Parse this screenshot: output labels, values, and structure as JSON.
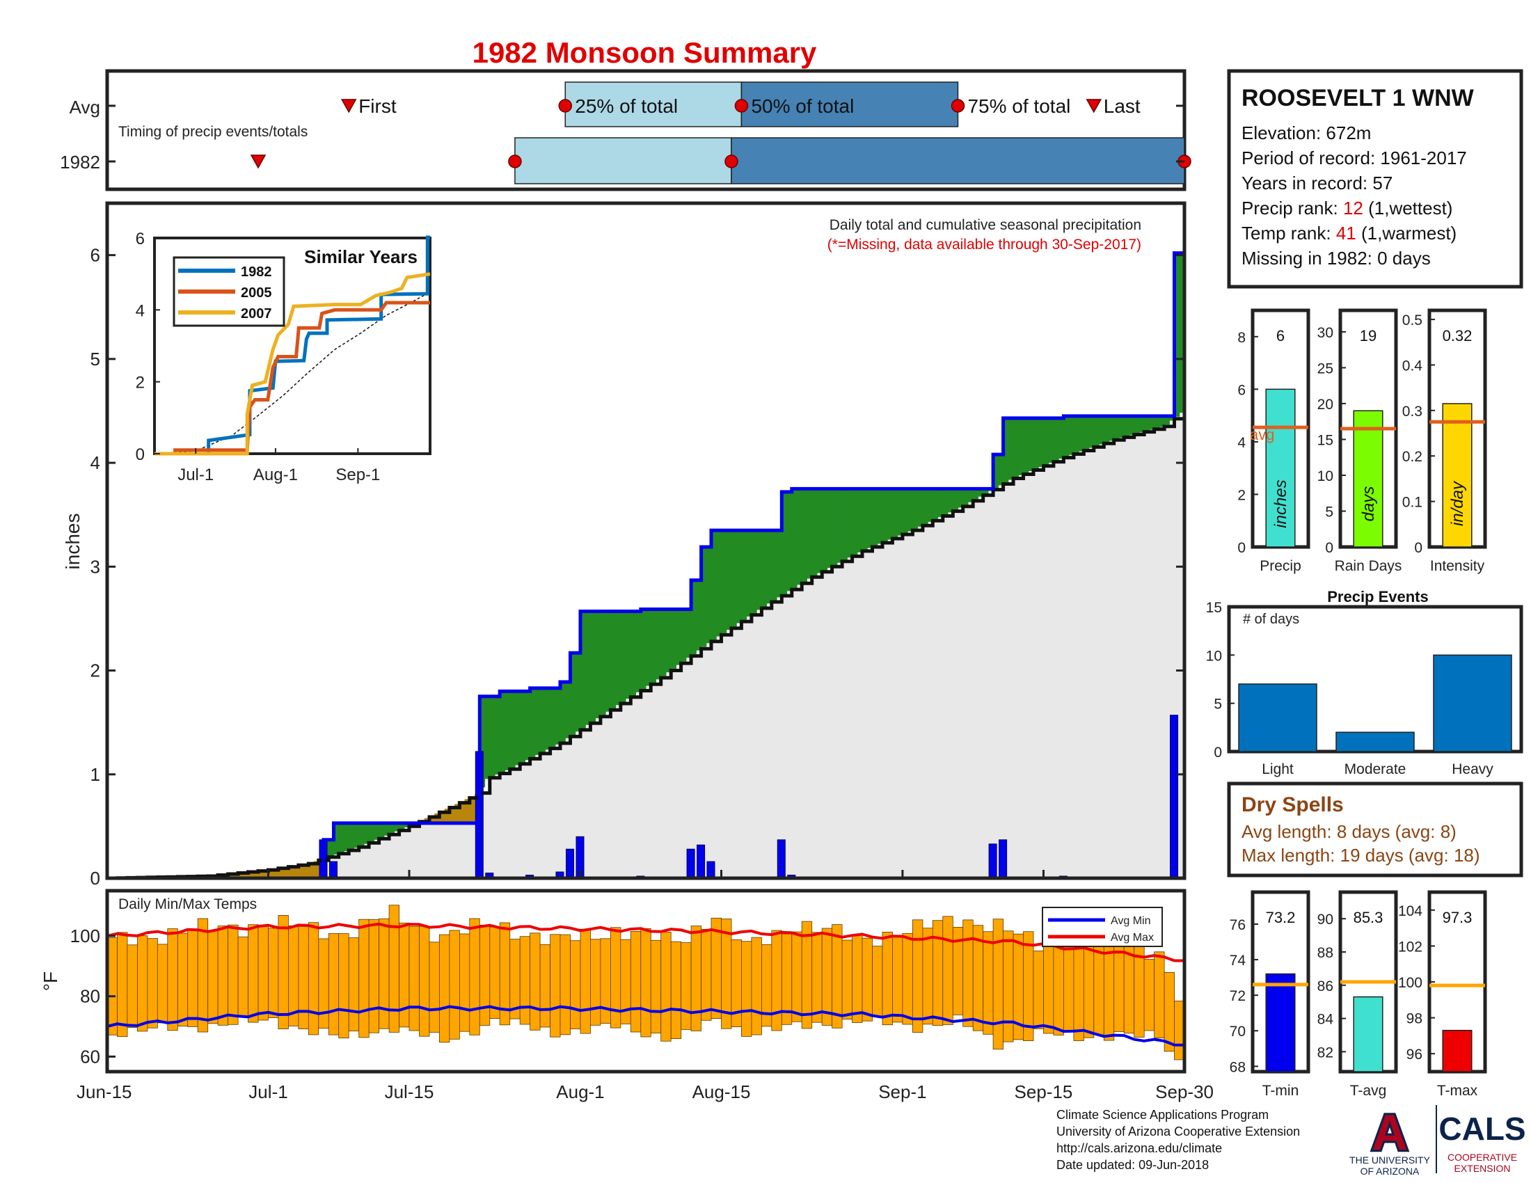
{
  "title": "1982 Monsoon Summary",
  "colors": {
    "title": "#e00000",
    "blue_line": "#0000ee",
    "green_fill": "#228b22",
    "brown_fill": "#b8860b",
    "gray_fill": "#e8e8e8",
    "bar_blue": "#0000ee",
    "temp_bar": "#ffa500",
    "avg_max": "#ee0000",
    "avg_min": "#0000ee",
    "light_blue": "#add8e6",
    "steel_blue": "#4682b4",
    "avg_line": "#e0601e",
    "dry_spell": "#8b4513",
    "red_text": "#e00000"
  },
  "timing": {
    "row_avg": "Avg",
    "row_year": "1982",
    "caption": "Timing of precip events/totals",
    "labels": {
      "first": "First",
      "p25": "25% of total",
      "p50": "50% of total",
      "p75": "75% of total",
      "last": "Last"
    },
    "avg": {
      "first": 24,
      "p25": 45.5,
      "p50": 63,
      "p75": 84.5,
      "last": 98
    },
    "year": {
      "first": 15,
      "p25": 40.5,
      "p50": 62,
      "p75": 107
    }
  },
  "station": {
    "name": "ROOSEVELT 1 WNW",
    "elevation": "Elevation: 672m",
    "period": "Period of record: 1961-2017",
    "years": "Years in record: 57",
    "precip_rank_label": "Precip rank: ",
    "precip_rank": "12",
    "precip_rank_note": " (1,wettest)",
    "temp_rank_label": "Temp rank: ",
    "temp_rank": "41",
    "temp_rank_note": " (1,warmest)",
    "missing": "Missing in 1982: 0 days"
  },
  "main_chart": {
    "ylabel": "inches",
    "ylim": [
      0,
      6.5
    ],
    "yticks": [
      "0",
      "1",
      "2",
      "3",
      "4",
      "5",
      "6"
    ],
    "xlim": [
      0,
      107
    ],
    "xticks": [
      {
        "label": "Jun-15",
        "day": 0
      },
      {
        "label": "Jul-1",
        "day": 16
      },
      {
        "label": "Jul-15",
        "day": 30
      },
      {
        "label": "Aug-1",
        "day": 47
      },
      {
        "label": "Aug-15",
        "day": 61
      },
      {
        "label": "Sep-1",
        "day": 79
      },
      {
        "label": "Sep-15",
        "day": 93
      },
      {
        "label": "Sep-30",
        "day": 108
      }
    ],
    "note": "Daily total and cumulative seasonal precipitation",
    "missing_note": "(*=Missing, data available through 30-Sep-2017)",
    "cumulative_1982": [
      [
        0,
        0
      ],
      [
        16,
        0
      ],
      [
        21.5,
        0
      ],
      [
        21.5,
        0.37
      ],
      [
        22.5,
        0.37
      ],
      [
        22.5,
        0.53
      ],
      [
        37,
        0.53
      ],
      [
        37,
        1.75
      ],
      [
        39,
        1.75
      ],
      [
        39,
        1.8
      ],
      [
        42,
        1.8
      ],
      [
        42,
        1.83
      ],
      [
        45,
        1.83
      ],
      [
        45,
        1.89
      ],
      [
        46,
        1.89
      ],
      [
        46,
        2.17
      ],
      [
        47,
        2.17
      ],
      [
        47,
        2.57
      ],
      [
        53,
        2.57
      ],
      [
        53,
        2.59
      ],
      [
        58,
        2.59
      ],
      [
        58,
        2.87
      ],
      [
        59,
        2.87
      ],
      [
        59,
        3.19
      ],
      [
        60,
        3.19
      ],
      [
        60,
        3.35
      ],
      [
        67,
        3.35
      ],
      [
        67,
        3.72
      ],
      [
        68,
        3.72
      ],
      [
        68,
        3.75
      ],
      [
        88,
        3.75
      ],
      [
        88,
        4.08
      ],
      [
        89,
        4.08
      ],
      [
        89,
        4.43
      ],
      [
        95,
        4.43
      ],
      [
        95,
        4.45
      ],
      [
        106,
        4.45
      ],
      [
        106,
        6.02
      ],
      [
        107,
        6.02
      ]
    ],
    "average_cumulative": [
      [
        0,
        0
      ],
      [
        10,
        0.02
      ],
      [
        16,
        0.08
      ],
      [
        20,
        0.14
      ],
      [
        25,
        0.3
      ],
      [
        30,
        0.5
      ],
      [
        34,
        0.68
      ],
      [
        37,
        0.82
      ],
      [
        37.6,
        0.95
      ],
      [
        40,
        1.05
      ],
      [
        45,
        1.3
      ],
      [
        50,
        1.62
      ],
      [
        55,
        1.93
      ],
      [
        60,
        2.28
      ],
      [
        65,
        2.6
      ],
      [
        70,
        2.9
      ],
      [
        75,
        3.15
      ],
      [
        80,
        3.35
      ],
      [
        85,
        3.58
      ],
      [
        90,
        3.85
      ],
      [
        95,
        4.05
      ],
      [
        100,
        4.22
      ],
      [
        105,
        4.35
      ],
      [
        107,
        4.5
      ]
    ],
    "daily_bars": [
      [
        21.5,
        0.37
      ],
      [
        22.5,
        0.16
      ],
      [
        37,
        1.22
      ],
      [
        38,
        0.05
      ],
      [
        42,
        0.03
      ],
      [
        45,
        0.06
      ],
      [
        46,
        0.28
      ],
      [
        47,
        0.4
      ],
      [
        53,
        0.02
      ],
      [
        58,
        0.28
      ],
      [
        59,
        0.32
      ],
      [
        60,
        0.16
      ],
      [
        67,
        0.37
      ],
      [
        68,
        0.03
      ],
      [
        88,
        0.33
      ],
      [
        89,
        0.37
      ],
      [
        95,
        0.02
      ],
      [
        106,
        1.57
      ]
    ]
  },
  "inset": {
    "title": "Similar Years",
    "ylim": [
      0,
      6
    ],
    "yticks": [
      "0",
      "2",
      "4",
      "6"
    ],
    "xticks": [
      {
        "label": "Jul-1",
        "day": 16
      },
      {
        "label": "Aug-1",
        "day": 47
      },
      {
        "label": "Sep-1",
        "day": 79
      }
    ],
    "series": [
      {
        "name": "1982",
        "color": "#0072bd",
        "points": [
          [
            0,
            0
          ],
          [
            21,
            0
          ],
          [
            21,
            0.37
          ],
          [
            37,
            0.53
          ],
          [
            37,
            1.75
          ],
          [
            46,
            1.83
          ],
          [
            47,
            2.57
          ],
          [
            58,
            2.59
          ],
          [
            59,
            3.19
          ],
          [
            60,
            3.35
          ],
          [
            67,
            3.35
          ],
          [
            67,
            3.72
          ],
          [
            88,
            3.75
          ],
          [
            88,
            4.43
          ],
          [
            106,
            4.45
          ],
          [
            106,
            6.02
          ],
          [
            107,
            6.02
          ]
        ]
      },
      {
        "name": "2005",
        "color": "#d95319",
        "points": [
          [
            0,
            0
          ],
          [
            8,
            0
          ],
          [
            8,
            0.1
          ],
          [
            36,
            0.1
          ],
          [
            37,
            1.3
          ],
          [
            39,
            1.5
          ],
          [
            44,
            1.5
          ],
          [
            46,
            2.4
          ],
          [
            48,
            2.7
          ],
          [
            55,
            2.7
          ],
          [
            56,
            3.5
          ],
          [
            64,
            3.5
          ],
          [
            65,
            3.9
          ],
          [
            70,
            4.0
          ],
          [
            88,
            4.0
          ],
          [
            90,
            4.2
          ],
          [
            107,
            4.2
          ]
        ]
      },
      {
        "name": "2007",
        "color": "#edb120",
        "points": [
          [
            0,
            0
          ],
          [
            36,
            0
          ],
          [
            36,
            1.1
          ],
          [
            38,
            1.9
          ],
          [
            43,
            2.0
          ],
          [
            46,
            2.9
          ],
          [
            48,
            3.3
          ],
          [
            52,
            3.6
          ],
          [
            54,
            4.1
          ],
          [
            70,
            4.15
          ],
          [
            80,
            4.15
          ],
          [
            86,
            4.4
          ],
          [
            92,
            4.5
          ],
          [
            96,
            4.6
          ],
          [
            98,
            4.9
          ],
          [
            107,
            5.0
          ]
        ]
      }
    ],
    "avg_points": [
      [
        0,
        0
      ],
      [
        16,
        0.08
      ],
      [
        30,
        0.5
      ],
      [
        40,
        1.05
      ],
      [
        50,
        1.62
      ],
      [
        60,
        2.28
      ],
      [
        70,
        2.9
      ],
      [
        80,
        3.35
      ],
      [
        90,
        3.85
      ],
      [
        100,
        4.22
      ],
      [
        107,
        4.5
      ]
    ]
  },
  "temps": {
    "label": "Daily Min/Max Temps",
    "ylabel": "°F",
    "ylim": [
      55,
      115
    ],
    "yticks": [
      "60",
      "80",
      "100"
    ],
    "legend_min": "Avg Min",
    "legend_max": "Avg Max",
    "max_knots": [
      [
        0,
        98
      ],
      [
        8,
        102
      ],
      [
        16,
        104
      ],
      [
        23,
        101
      ],
      [
        28,
        107
      ],
      [
        33,
        100
      ],
      [
        38,
        104
      ],
      [
        44,
        98
      ],
      [
        50,
        102
      ],
      [
        56,
        98
      ],
      [
        60,
        107
      ],
      [
        63,
        96
      ],
      [
        68,
        104
      ],
      [
        74,
        99
      ],
      [
        80,
        102
      ],
      [
        84,
        106
      ],
      [
        88,
        103
      ],
      [
        92,
        97
      ],
      [
        96,
        101
      ],
      [
        100,
        98
      ],
      [
        104,
        95
      ],
      [
        106,
        80
      ],
      [
        107,
        85
      ]
    ],
    "min_knots": [
      [
        0,
        68
      ],
      [
        8,
        70
      ],
      [
        16,
        72
      ],
      [
        23,
        66
      ],
      [
        28,
        70
      ],
      [
        33,
        65
      ],
      [
        38,
        72
      ],
      [
        44,
        68
      ],
      [
        50,
        70
      ],
      [
        56,
        66
      ],
      [
        60,
        72
      ],
      [
        63,
        68
      ],
      [
        68,
        70
      ],
      [
        74,
        72
      ],
      [
        80,
        70
      ],
      [
        84,
        72
      ],
      [
        88,
        64
      ],
      [
        92,
        68
      ],
      [
        96,
        66
      ],
      [
        100,
        68
      ],
      [
        104,
        66
      ],
      [
        106,
        58
      ],
      [
        107,
        60
      ]
    ],
    "avg_max_knots": [
      [
        0,
        100
      ],
      [
        15,
        103
      ],
      [
        30,
        103.5
      ],
      [
        45,
        102.5
      ],
      [
        60,
        101.5
      ],
      [
        75,
        100
      ],
      [
        90,
        98
      ],
      [
        107,
        92
      ]
    ],
    "avg_min_knots": [
      [
        0,
        70
      ],
      [
        15,
        74
      ],
      [
        30,
        76
      ],
      [
        45,
        76
      ],
      [
        60,
        75
      ],
      [
        75,
        74
      ],
      [
        90,
        71
      ],
      [
        107,
        64
      ]
    ]
  },
  "stat_charts": [
    {
      "label": "Precip",
      "value": 6,
      "value_label": "6",
      "avg": 4.55,
      "avg_label": "avg",
      "unit": "inches",
      "color": "#40e0d0",
      "ymax": 9,
      "ticks": [
        "0",
        "2",
        "4",
        "6",
        "8"
      ],
      "tick_values": [
        0,
        2,
        4,
        6,
        8
      ]
    },
    {
      "label": "Rain Days",
      "value": 19,
      "value_label": "19",
      "avg": 16.5,
      "unit": "days",
      "color": "#7cfc00",
      "ymax": 33,
      "ticks": [
        "0",
        "5",
        "10",
        "15",
        "20",
        "25",
        "30"
      ],
      "tick_values": [
        0,
        5,
        10,
        15,
        20,
        25,
        30
      ]
    },
    {
      "label": "Intensity",
      "value": 0.315,
      "value_label": "0.32",
      "avg": 0.275,
      "unit": "in/day",
      "color": "#ffd700",
      "ymax": 0.52,
      "ticks": [
        "0",
        "0.1",
        "0.2",
        "0.3",
        "0.4",
        "0.5"
      ],
      "tick_values": [
        0,
        0.1,
        0.2,
        0.3,
        0.4,
        0.5
      ]
    }
  ],
  "precip_events": {
    "title": "Precip Events",
    "ylabel": "# of days",
    "categories": [
      "Light",
      "Moderate",
      "Heavy"
    ],
    "values": [
      7,
      2,
      10
    ],
    "ylim": [
      0,
      15
    ],
    "yticks": [
      "0",
      "5",
      "10",
      "15"
    ],
    "color": "#0072bd"
  },
  "dry_spells": {
    "title": "Dry Spells",
    "avg_length": "Avg length: 8 days (avg: 8)",
    "max_length": "Max length: 19 days (avg: 18)"
  },
  "temp_charts": [
    {
      "label": "T-min",
      "value": 73.2,
      "value_label": "73.2",
      "avg": 72.6,
      "color": "#0000ee",
      "ymin": 67.7,
      "ymax": 77.8,
      "ticks": [
        "68",
        "70",
        "72",
        "74",
        "76"
      ],
      "tick_values": [
        68,
        70,
        72,
        74,
        76
      ]
    },
    {
      "label": "T-avg",
      "value": 85.3,
      "value_label": "85.3",
      "avg": 86.2,
      "color": "#40e0d0",
      "ymin": 80.8,
      "ymax": 91.6,
      "ticks": [
        "82",
        "84",
        "86",
        "88",
        "90"
      ],
      "tick_values": [
        82,
        84,
        86,
        88,
        90
      ]
    },
    {
      "label": "T-max",
      "value": 97.3,
      "value_label": "97.3",
      "avg": 99.8,
      "color": "#ee0000",
      "ymin": 95.0,
      "ymax": 105.0,
      "ticks": [
        "96",
        "98",
        "100",
        "102",
        "104"
      ],
      "tick_values": [
        96,
        98,
        100,
        102,
        104
      ]
    }
  ],
  "footer": {
    "line1": "Climate Science Applications Program",
    "line2": "University of Arizona Cooperative Extension",
    "line3": "http://cals.arizona.edu/climate",
    "line4": " Date updated: 09-Jun-2018"
  },
  "logos": {
    "ua_letter": "A",
    "ua_line1": "THE UNIVERSITY",
    "ua_line2": "OF ARIZONA",
    "cals": "CALS",
    "cals_line1": "COOPERATIVE",
    "cals_line2": "EXTENSION"
  }
}
